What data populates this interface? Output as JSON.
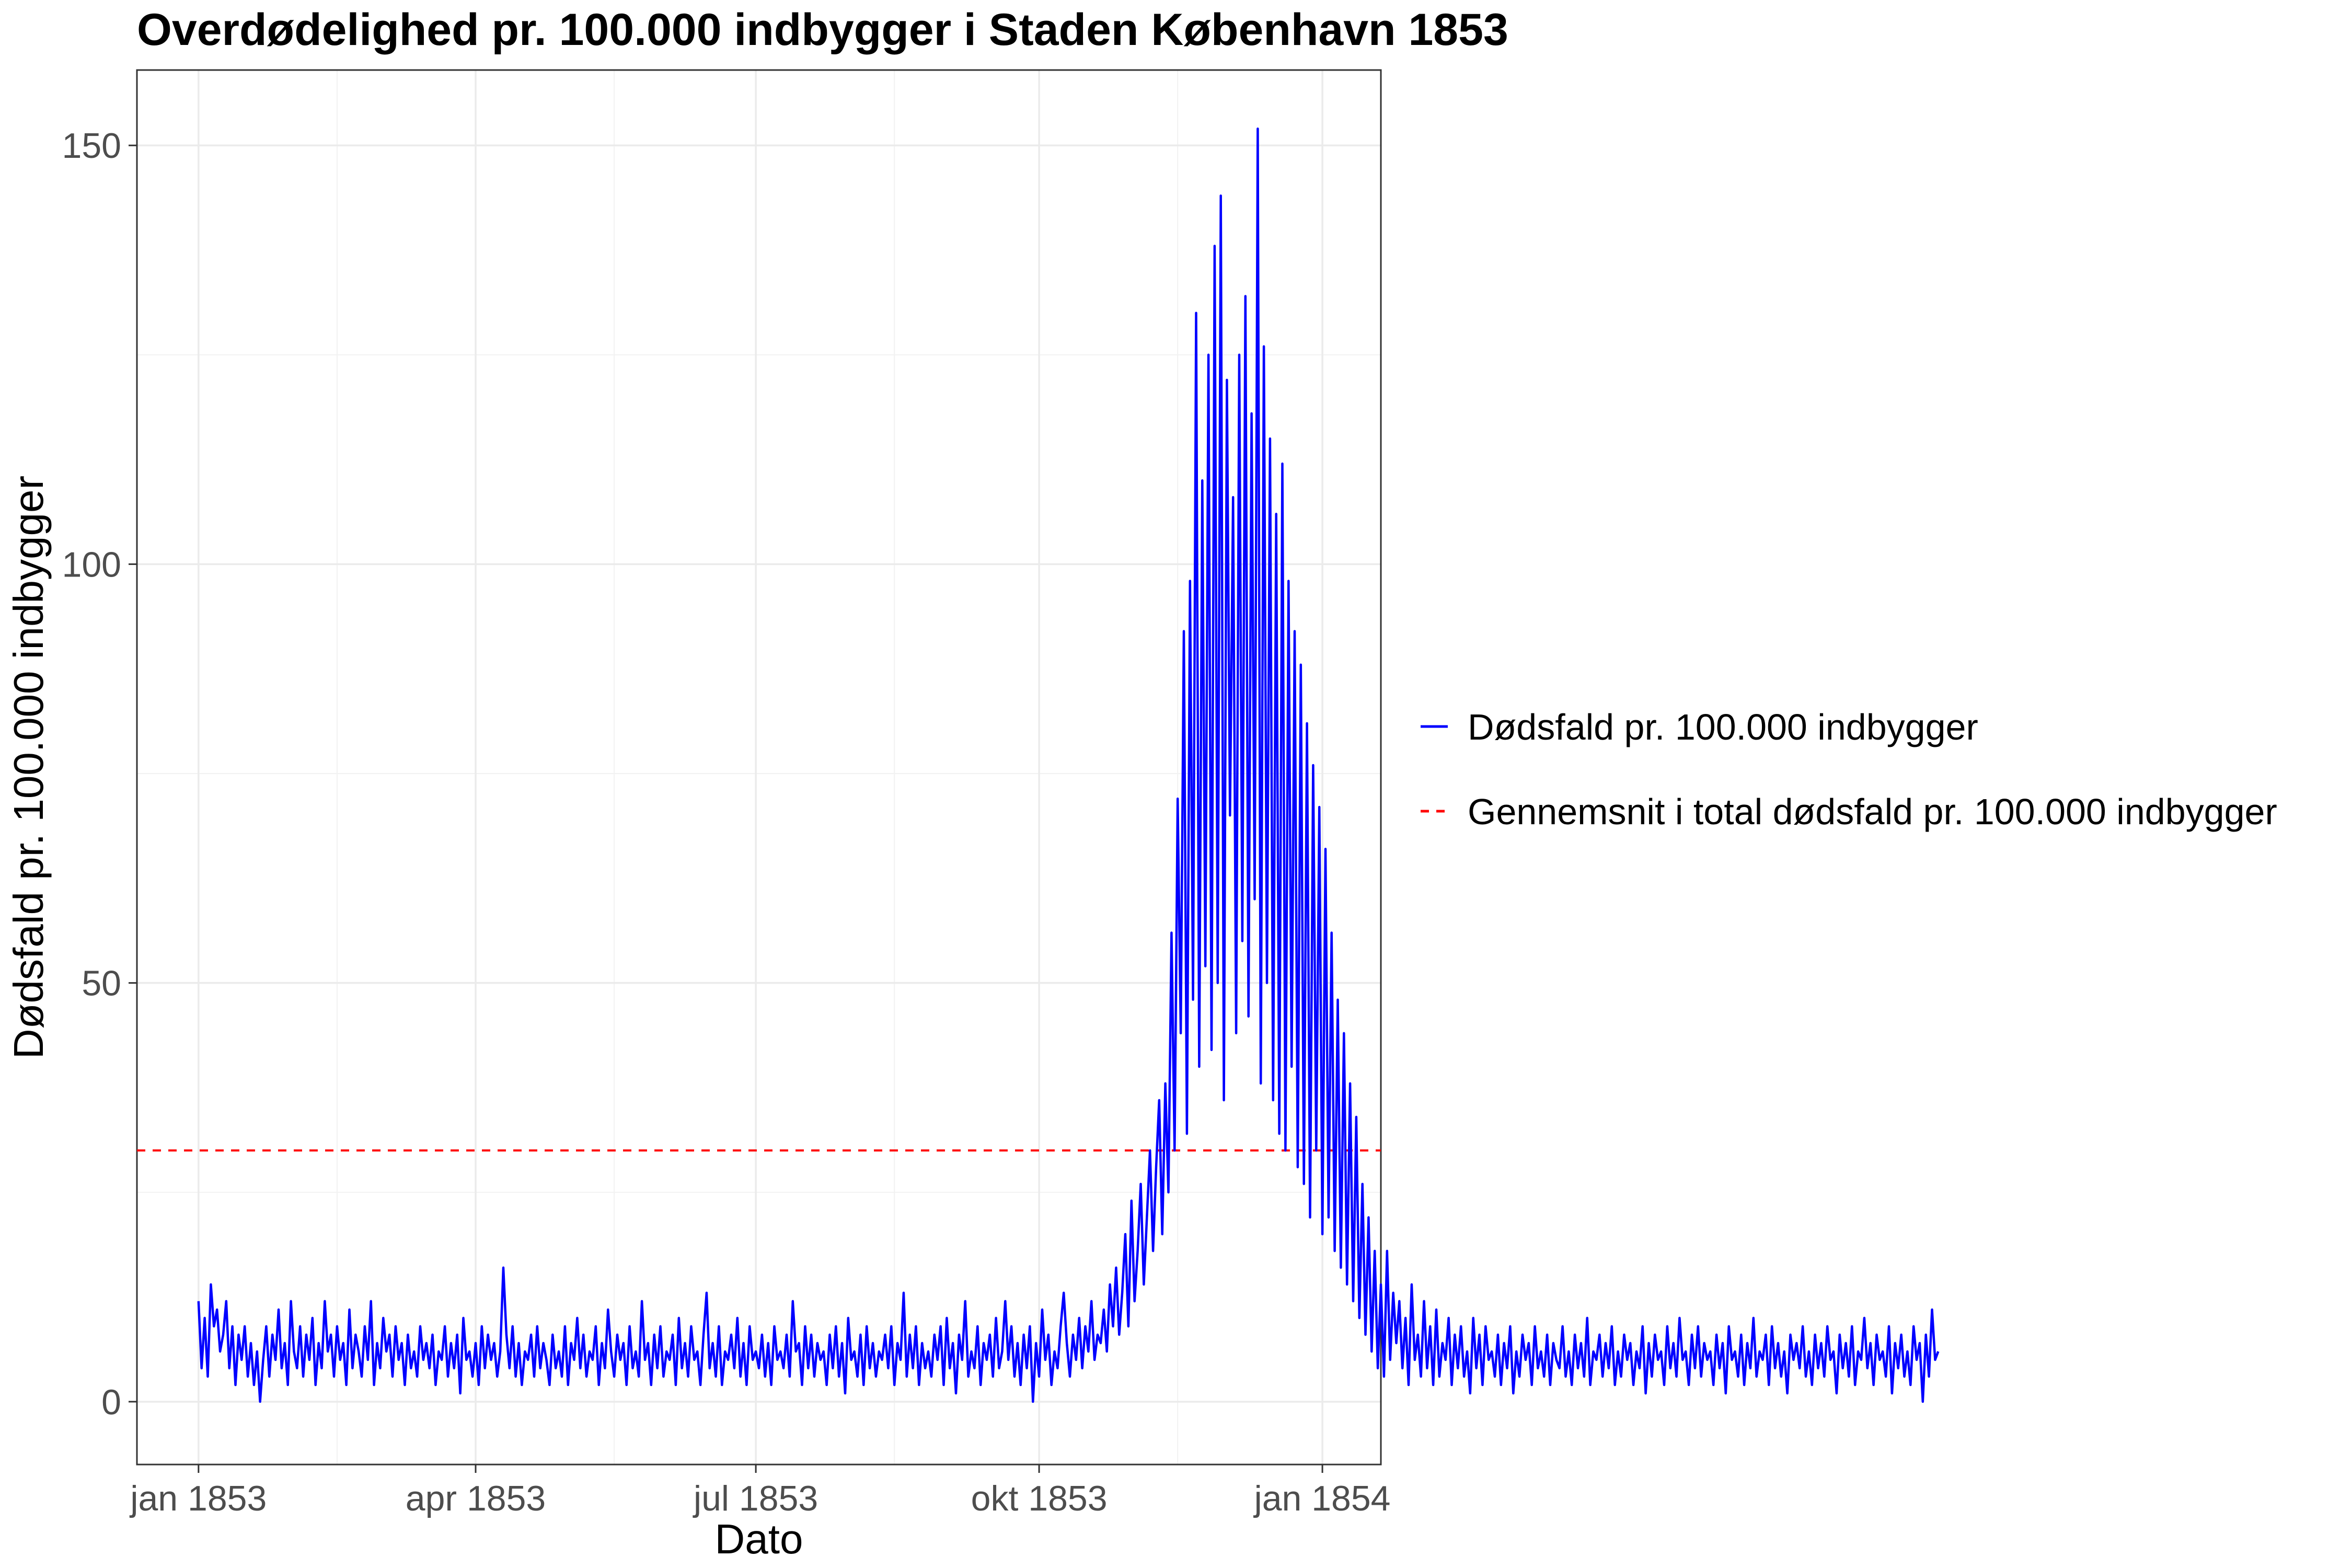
{
  "chart_data": {
    "type": "line",
    "title": "Overdødelighed pr. 100.000 indbygger i Staden København 1853",
    "xlabel": "Dato",
    "ylabel": "Dødsfald pr. 100.000 indbygger",
    "xlim": [
      "1852-12-12",
      "1854-01-20"
    ],
    "ylim": [
      -7.5,
      159
    ],
    "x_ticks": [
      {
        "date": "1853-01-01",
        "label": "jan 1853"
      },
      {
        "date": "1853-04-01",
        "label": "apr 1853"
      },
      {
        "date": "1853-07-01",
        "label": "jul 1853"
      },
      {
        "date": "1853-10-01",
        "label": "okt 1853"
      },
      {
        "date": "1854-01-01",
        "label": "jan 1854"
      }
    ],
    "x_minor_ticks": [
      "1853-02-15",
      "1853-05-16",
      "1853-08-15",
      "1853-11-15"
    ],
    "y_ticks": [
      0,
      50,
      100,
      150
    ],
    "y_minor_ticks": [
      25,
      75,
      125
    ],
    "grid": true,
    "legend_position": "right",
    "series": [
      {
        "name": "Dødsfald pr. 100.000 indbygger",
        "color": "#0000ff",
        "style": "solid",
        "daily_values_from": "1853-01-01",
        "values": [
          12,
          4,
          10,
          3,
          14,
          9,
          11,
          6,
          8,
          12,
          4,
          9,
          2,
          8,
          5,
          9,
          3,
          7,
          2,
          6,
          0,
          5,
          9,
          3,
          8,
          5,
          11,
          4,
          7,
          2,
          12,
          6,
          4,
          9,
          3,
          8,
          5,
          10,
          2,
          7,
          4,
          12,
          6,
          8,
          3,
          9,
          5,
          7,
          2,
          11,
          4,
          8,
          6,
          3,
          9,
          5,
          12,
          2,
          7,
          4,
          10,
          6,
          8,
          3,
          9,
          5,
          7,
          2,
          8,
          4,
          6,
          3,
          9,
          5,
          7,
          4,
          8,
          2,
          6,
          5,
          9,
          3,
          7,
          4,
          8,
          1,
          10,
          5,
          6,
          3,
          7,
          2,
          9,
          4,
          8,
          5,
          7,
          3,
          6,
          16,
          8,
          4,
          9,
          3,
          7,
          2,
          6,
          5,
          8,
          3,
          9,
          4,
          7,
          5,
          2,
          8,
          4,
          6,
          3,
          9,
          2,
          7,
          5,
          10,
          4,
          8,
          3,
          6,
          5,
          9,
          2,
          7,
          4,
          11,
          6,
          3,
          8,
          5,
          7,
          2,
          9,
          4,
          6,
          3,
          12,
          5,
          7,
          2,
          8,
          4,
          9,
          3,
          6,
          5,
          8,
          2,
          10,
          4,
          7,
          3,
          9,
          5,
          6,
          2,
          8,
          13,
          4,
          7,
          3,
          9,
          2,
          6,
          5,
          8,
          4,
          10,
          3,
          7,
          2,
          9,
          5,
          6,
          4,
          8,
          3,
          7,
          2,
          9,
          5,
          6,
          4,
          8,
          3,
          12,
          6,
          7,
          2,
          9,
          4,
          8,
          3,
          7,
          5,
          6,
          2,
          8,
          4,
          9,
          3,
          7,
          1,
          10,
          5,
          6,
          3,
          8,
          2,
          9,
          4,
          7,
          3,
          6,
          5,
          8,
          4,
          9,
          2,
          7,
          5,
          13,
          3,
          8,
          4,
          9,
          2,
          7,
          4,
          6,
          3,
          8,
          5,
          9,
          2,
          10,
          4,
          7,
          1,
          8,
          5,
          12,
          3,
          6,
          4,
          9,
          2,
          7,
          5,
          8,
          3,
          10,
          4,
          6,
          12,
          5,
          9,
          3,
          7,
          2,
          8,
          4,
          9,
          0,
          7,
          3,
          11,
          5,
          8,
          2,
          6,
          4,
          9,
          13,
          7,
          3,
          8,
          5,
          10,
          4,
          9,
          6,
          12,
          5,
          8,
          7,
          11,
          6,
          14,
          9,
          16,
          8,
          13,
          20,
          9,
          24,
          12,
          18,
          26,
          14,
          22,
          30,
          18,
          28,
          36,
          20,
          38,
          25,
          56,
          30,
          72,
          44,
          92,
          32,
          98,
          48,
          130,
          40,
          110,
          52,
          125,
          42,
          138,
          50,
          144,
          36,
          122,
          70,
          108,
          44,
          125,
          55,
          132,
          46,
          118,
          60,
          152,
          38,
          126,
          50,
          115,
          36,
          106,
          32,
          112,
          30,
          98,
          40,
          92,
          28,
          88,
          26,
          81,
          22,
          76,
          30,
          71,
          20,
          66,
          22,
          56,
          18,
          48,
          16,
          44,
          14,
          38,
          12,
          34,
          10,
          26,
          8,
          22,
          6,
          18,
          4,
          14,
          3,
          18,
          5,
          13,
          7,
          12,
          4,
          10,
          2,
          14,
          5,
          8,
          3,
          12,
          4,
          9,
          2,
          11,
          3,
          7,
          5,
          10,
          2,
          8,
          4,
          9,
          3,
          6,
          1,
          10,
          4,
          8,
          2,
          9,
          5,
          6,
          3,
          8,
          2,
          7,
          4,
          9,
          1,
          6,
          3,
          8,
          5,
          7,
          2,
          9,
          4,
          6,
          3,
          8,
          2,
          7,
          5,
          4,
          9,
          3,
          6,
          2,
          8,
          4,
          7,
          3,
          10,
          2,
          6,
          5,
          8,
          3,
          7,
          4,
          9,
          2,
          6,
          3,
          8,
          5,
          7,
          2,
          6,
          4,
          9,
          1,
          7,
          3,
          8,
          5,
          6,
          2,
          9,
          4,
          7,
          3,
          10,
          5,
          6,
          2,
          8,
          4,
          9,
          3,
          7,
          5,
          6,
          2,
          8,
          4,
          7,
          1,
          9,
          5,
          6,
          3,
          8,
          2,
          7,
          4,
          10,
          3,
          6,
          5,
          8,
          2,
          9,
          4,
          7,
          3,
          6,
          1,
          8,
          5,
          7,
          4,
          9,
          3,
          6,
          2,
          8,
          4,
          7,
          3,
          9,
          5,
          6,
          1,
          8,
          4,
          7,
          3,
          9,
          2,
          6,
          5,
          10,
          4,
          7,
          2,
          8,
          5,
          6,
          3,
          9,
          1,
          7,
          4,
          8,
          3,
          6,
          2,
          9,
          5,
          7,
          0,
          8,
          3,
          11,
          5,
          6
        ]
      },
      {
        "name": "Gennemsnit i total dødsfald pr. 100.000 indbygger",
        "color": "#ff0000",
        "style": "dashed",
        "value": 30
      }
    ]
  }
}
